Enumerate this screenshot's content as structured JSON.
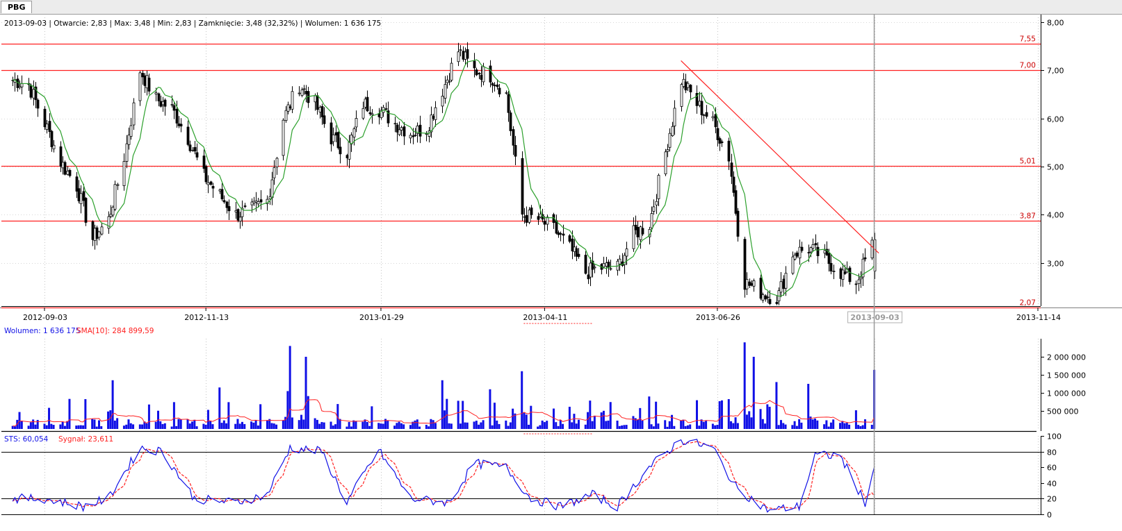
{
  "window": {
    "tab_label": "PBG"
  },
  "chart_data": {
    "type": "candlestick",
    "ticker": "PBG",
    "info_line": "2013-09-03 | Otwarcie: 2,83 | Max: 3,48 | Min: 2,83 | Zamknięcie: 3,48 (32,32%)  | Wolumen: 1 636 175",
    "price_axis": {
      "ylim": [
        2.1,
        8.1
      ],
      "ticks": [
        3,
        4,
        5,
        6,
        7,
        8
      ],
      "tick_labels": [
        "3,00",
        "4,00",
        "5,00",
        "6,00",
        "7,00",
        "8,00"
      ]
    },
    "levels": [
      {
        "value": 7.55,
        "label": "7,55"
      },
      {
        "value": 7.0,
        "label": "7,00"
      },
      {
        "value": 5.01,
        "label": "5,01"
      },
      {
        "value": 3.87,
        "label": "3,87"
      },
      {
        "value": 2.07,
        "label": "2,07"
      }
    ],
    "trendline": {
      "from": {
        "date": "2013-06-10",
        "value": 7.2
      },
      "to": {
        "date": "2013-09-05",
        "value": 3.2
      }
    },
    "date_axis": {
      "ticks": [
        "2012-09-03",
        "2012-11-13",
        "2013-01-29",
        "2013-04-11",
        "2013-06-26",
        "2013-09-03",
        "2013-11-14"
      ],
      "highlighted": "2013-09-03"
    },
    "sma_color": "#2ca02c",
    "close_anchors": [
      [
        "2012-08-20",
        6.8
      ],
      [
        "2012-08-27",
        6.7
      ],
      [
        "2012-09-03",
        5.9
      ],
      [
        "2012-09-10",
        5.1
      ],
      [
        "2012-09-17",
        4.6
      ],
      [
        "2012-09-24",
        3.5
      ],
      [
        "2012-10-01",
        3.9
      ],
      [
        "2012-10-08",
        5.2
      ],
      [
        "2012-10-15",
        7.0
      ],
      [
        "2012-10-22",
        6.4
      ],
      [
        "2012-10-29",
        6.2
      ],
      [
        "2012-11-05",
        5.6
      ],
      [
        "2012-11-12",
        4.8
      ],
      [
        "2012-11-19",
        4.4
      ],
      [
        "2012-11-26",
        4.0
      ],
      [
        "2012-12-03",
        4.1
      ],
      [
        "2012-12-10",
        4.3
      ],
      [
        "2012-12-17",
        6.0
      ],
      [
        "2012-12-24",
        6.7
      ],
      [
        "2012-12-31",
        6.3
      ],
      [
        "2013-01-07",
        5.6
      ],
      [
        "2013-01-14",
        5.3
      ],
      [
        "2013-01-21",
        6.3
      ],
      [
        "2013-01-28",
        6.2
      ],
      [
        "2013-02-04",
        5.9
      ],
      [
        "2013-02-11",
        5.7
      ],
      [
        "2013-02-18",
        5.8
      ],
      [
        "2013-02-25",
        6.6
      ],
      [
        "2013-03-04",
        7.4
      ],
      [
        "2013-03-11",
        7.0
      ],
      [
        "2013-03-18",
        6.9
      ],
      [
        "2013-03-25",
        6.5
      ],
      [
        "2013-04-01",
        4.0
      ],
      [
        "2013-04-08",
        3.9
      ],
      [
        "2013-04-15",
        3.7
      ],
      [
        "2013-04-22",
        3.3
      ],
      [
        "2013-04-29",
        2.8
      ],
      [
        "2013-05-06",
        2.9
      ],
      [
        "2013-05-13",
        2.9
      ],
      [
        "2013-05-20",
        3.6
      ],
      [
        "2013-05-27",
        3.8
      ],
      [
        "2013-06-03",
        5.3
      ],
      [
        "2013-06-10",
        6.8
      ],
      [
        "2013-06-17",
        6.3
      ],
      [
        "2013-06-24",
        5.9
      ],
      [
        "2013-07-01",
        5.2
      ],
      [
        "2013-07-08",
        2.6
      ],
      [
        "2013-07-15",
        2.4
      ],
      [
        "2013-07-22",
        2.2
      ],
      [
        "2013-07-29",
        3.2
      ],
      [
        "2013-08-05",
        3.3
      ],
      [
        "2013-08-12",
        3.1
      ],
      [
        "2013-08-19",
        2.8
      ],
      [
        "2013-08-26",
        2.6
      ],
      [
        "2013-09-03",
        3.48
      ]
    ],
    "volume": {
      "label": "Wolumen: 1 636 175",
      "sma_label": "SMA[10]: 284 899,59",
      "color": "#1010e6",
      "sma_color": "#ff2020",
      "ylim": [
        0,
        2500000
      ],
      "ticks": [
        500000,
        1000000,
        1500000,
        2000000
      ],
      "tick_labels": [
        "500 000",
        "1 000 000",
        "1 500 000",
        "2 000 000"
      ],
      "spikes": [
        [
          "2012-10-03",
          1350000
        ],
        [
          "2012-11-19",
          1150000
        ],
        [
          "2012-12-20",
          2300000
        ],
        [
          "2012-12-27",
          2000000
        ],
        [
          "2013-02-25",
          1350000
        ],
        [
          "2013-03-18",
          1100000
        ],
        [
          "2013-04-01",
          1600000
        ],
        [
          "2013-05-27",
          900000
        ],
        [
          "2013-07-08",
          2400000
        ],
        [
          "2013-07-12",
          2000000
        ],
        [
          "2013-07-22",
          1300000
        ],
        [
          "2013-08-05",
          1250000
        ],
        [
          "2013-09-03",
          1636175
        ]
      ]
    },
    "stochastic": {
      "label": "STS: 60,054",
      "signal_label": "Sygnał: 23,611",
      "sts_color": "#1010e6",
      "signal_color": "#ff2020",
      "ylim": [
        0,
        100
      ],
      "ticks": [
        0,
        20,
        40,
        60,
        80,
        100
      ],
      "tick_labels": [
        "0",
        "20",
        "40",
        "60",
        "80",
        "100"
      ],
      "levels": [
        20,
        80
      ],
      "anchors": [
        [
          "2012-08-20",
          20
        ],
        [
          "2012-09-03",
          20
        ],
        [
          "2012-09-20",
          10
        ],
        [
          "2012-10-01",
          20
        ],
        [
          "2012-10-15",
          85
        ],
        [
          "2012-10-25",
          80
        ],
        [
          "2012-11-08",
          20
        ],
        [
          "2012-11-26",
          15
        ],
        [
          "2012-12-10",
          25
        ],
        [
          "2012-12-20",
          85
        ],
        [
          "2013-01-03",
          80
        ],
        [
          "2013-01-14",
          15
        ],
        [
          "2013-01-28",
          82
        ],
        [
          "2013-02-11",
          20
        ],
        [
          "2013-02-28",
          15
        ],
        [
          "2013-03-11",
          65
        ],
        [
          "2013-03-25",
          60
        ],
        [
          "2013-04-05",
          20
        ],
        [
          "2013-04-18",
          10
        ],
        [
          "2013-05-02",
          25
        ],
        [
          "2013-05-13",
          10
        ],
        [
          "2013-05-27",
          60
        ],
        [
          "2013-06-10",
          95
        ],
        [
          "2013-06-24",
          85
        ],
        [
          "2013-07-04",
          35
        ],
        [
          "2013-07-18",
          5
        ],
        [
          "2013-08-01",
          10
        ],
        [
          "2013-08-08",
          75
        ],
        [
          "2013-08-19",
          75
        ],
        [
          "2013-08-30",
          15
        ],
        [
          "2013-09-03",
          60.054
        ]
      ]
    }
  }
}
